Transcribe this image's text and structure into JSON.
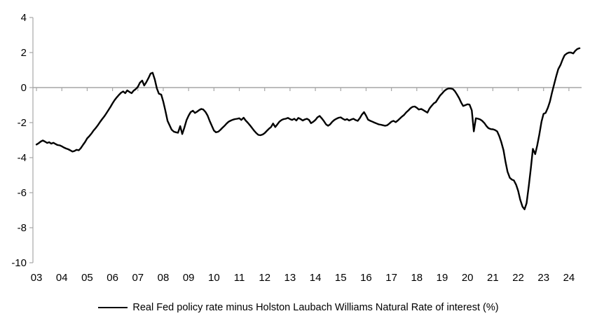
{
  "chart_data": {
    "type": "line",
    "title": "",
    "xlabel": "",
    "ylabel": "",
    "legend": "Real Fed policy rate minus Holston Laubach Williams Natural Rate of interest (%)",
    "legend_position": "bottom-center",
    "grid": "horizontal-zero-line-only",
    "background_color": "#ffffff",
    "axis_color": "#a6a6a6",
    "xlim": [
      2002.86,
      2024.5
    ],
    "ylim": [
      -10,
      4
    ],
    "y_ticks": [
      4,
      2,
      0,
      -2,
      -4,
      -6,
      -8,
      -10
    ],
    "y_tick_labels": [
      "4",
      "2",
      "0",
      "-2",
      "-4",
      "-6",
      "-8",
      "-10"
    ],
    "x_ticks": [
      2003,
      2004,
      2005,
      2006,
      2007,
      2008,
      2009,
      2010,
      2011,
      2012,
      2013,
      2014,
      2015,
      2016,
      2017,
      2018,
      2019,
      2020,
      2021,
      2022,
      2023,
      2024
    ],
    "x_tick_labels": [
      "03",
      "04",
      "05",
      "06",
      "07",
      "08",
      "09",
      "10",
      "11",
      "12",
      "13",
      "14",
      "15",
      "16",
      "17",
      "18",
      "19",
      "20",
      "21",
      "22",
      "23",
      "24"
    ],
    "series": [
      {
        "name": "Real Fed policy rate minus Holston Laubach Williams Natural Rate of interest (%)",
        "color": "#000000",
        "points": [
          [
            2003.0,
            -3.25
          ],
          [
            2003.08,
            -3.18
          ],
          [
            2003.17,
            -3.08
          ],
          [
            2003.25,
            -3.02
          ],
          [
            2003.33,
            -3.08
          ],
          [
            2003.42,
            -3.16
          ],
          [
            2003.5,
            -3.12
          ],
          [
            2003.58,
            -3.2
          ],
          [
            2003.67,
            -3.15
          ],
          [
            2003.75,
            -3.22
          ],
          [
            2003.83,
            -3.28
          ],
          [
            2003.92,
            -3.3
          ],
          [
            2004.0,
            -3.35
          ],
          [
            2004.08,
            -3.42
          ],
          [
            2004.17,
            -3.48
          ],
          [
            2004.25,
            -3.52
          ],
          [
            2004.33,
            -3.58
          ],
          [
            2004.42,
            -3.65
          ],
          [
            2004.5,
            -3.62
          ],
          [
            2004.58,
            -3.55
          ],
          [
            2004.67,
            -3.58
          ],
          [
            2004.75,
            -3.45
          ],
          [
            2004.83,
            -3.28
          ],
          [
            2004.92,
            -3.1
          ],
          [
            2005.0,
            -2.9
          ],
          [
            2005.08,
            -2.78
          ],
          [
            2005.17,
            -2.62
          ],
          [
            2005.25,
            -2.45
          ],
          [
            2005.33,
            -2.32
          ],
          [
            2005.42,
            -2.15
          ],
          [
            2005.5,
            -1.98
          ],
          [
            2005.58,
            -1.82
          ],
          [
            2005.67,
            -1.65
          ],
          [
            2005.75,
            -1.48
          ],
          [
            2005.83,
            -1.3
          ],
          [
            2005.92,
            -1.1
          ],
          [
            2006.0,
            -0.9
          ],
          [
            2006.08,
            -0.72
          ],
          [
            2006.17,
            -0.55
          ],
          [
            2006.25,
            -0.42
          ],
          [
            2006.33,
            -0.3
          ],
          [
            2006.42,
            -0.22
          ],
          [
            2006.5,
            -0.32
          ],
          [
            2006.58,
            -0.16
          ],
          [
            2006.67,
            -0.25
          ],
          [
            2006.75,
            -0.32
          ],
          [
            2006.83,
            -0.18
          ],
          [
            2006.92,
            -0.08
          ],
          [
            2007.0,
            0.05
          ],
          [
            2007.08,
            0.28
          ],
          [
            2007.17,
            0.4
          ],
          [
            2007.25,
            0.12
          ],
          [
            2007.33,
            0.3
          ],
          [
            2007.42,
            0.55
          ],
          [
            2007.5,
            0.8
          ],
          [
            2007.58,
            0.85
          ],
          [
            2007.67,
            0.45
          ],
          [
            2007.75,
            -0.05
          ],
          [
            2007.83,
            -0.35
          ],
          [
            2007.92,
            -0.4
          ],
          [
            2008.0,
            -0.8
          ],
          [
            2008.08,
            -1.3
          ],
          [
            2008.17,
            -1.9
          ],
          [
            2008.25,
            -2.15
          ],
          [
            2008.33,
            -2.4
          ],
          [
            2008.42,
            -2.52
          ],
          [
            2008.5,
            -2.55
          ],
          [
            2008.58,
            -2.58
          ],
          [
            2008.67,
            -2.2
          ],
          [
            2008.75,
            -2.65
          ],
          [
            2008.83,
            -2.3
          ],
          [
            2008.92,
            -1.85
          ],
          [
            2009.0,
            -1.6
          ],
          [
            2009.08,
            -1.4
          ],
          [
            2009.17,
            -1.32
          ],
          [
            2009.25,
            -1.45
          ],
          [
            2009.33,
            -1.38
          ],
          [
            2009.42,
            -1.28
          ],
          [
            2009.5,
            -1.22
          ],
          [
            2009.58,
            -1.25
          ],
          [
            2009.67,
            -1.4
          ],
          [
            2009.75,
            -1.6
          ],
          [
            2009.83,
            -1.9
          ],
          [
            2009.92,
            -2.2
          ],
          [
            2010.0,
            -2.45
          ],
          [
            2010.08,
            -2.55
          ],
          [
            2010.17,
            -2.52
          ],
          [
            2010.25,
            -2.42
          ],
          [
            2010.33,
            -2.3
          ],
          [
            2010.42,
            -2.18
          ],
          [
            2010.5,
            -2.05
          ],
          [
            2010.58,
            -1.95
          ],
          [
            2010.67,
            -1.88
          ],
          [
            2010.75,
            -1.83
          ],
          [
            2010.83,
            -1.8
          ],
          [
            2010.92,
            -1.78
          ],
          [
            2011.0,
            -1.75
          ],
          [
            2011.08,
            -1.85
          ],
          [
            2011.17,
            -1.72
          ],
          [
            2011.25,
            -1.88
          ],
          [
            2011.33,
            -2.0
          ],
          [
            2011.42,
            -2.15
          ],
          [
            2011.5,
            -2.3
          ],
          [
            2011.58,
            -2.45
          ],
          [
            2011.67,
            -2.6
          ],
          [
            2011.75,
            -2.7
          ],
          [
            2011.83,
            -2.72
          ],
          [
            2011.92,
            -2.68
          ],
          [
            2012.0,
            -2.6
          ],
          [
            2012.08,
            -2.48
          ],
          [
            2012.17,
            -2.35
          ],
          [
            2012.25,
            -2.25
          ],
          [
            2012.33,
            -2.05
          ],
          [
            2012.42,
            -2.25
          ],
          [
            2012.5,
            -2.1
          ],
          [
            2012.58,
            -1.95
          ],
          [
            2012.67,
            -1.85
          ],
          [
            2012.75,
            -1.8
          ],
          [
            2012.83,
            -1.78
          ],
          [
            2012.92,
            -1.73
          ],
          [
            2013.0,
            -1.8
          ],
          [
            2013.08,
            -1.85
          ],
          [
            2013.17,
            -1.78
          ],
          [
            2013.25,
            -1.88
          ],
          [
            2013.33,
            -1.73
          ],
          [
            2013.42,
            -1.8
          ],
          [
            2013.5,
            -1.88
          ],
          [
            2013.58,
            -1.82
          ],
          [
            2013.67,
            -1.78
          ],
          [
            2013.75,
            -1.85
          ],
          [
            2013.83,
            -2.03
          ],
          [
            2013.92,
            -1.95
          ],
          [
            2014.0,
            -1.85
          ],
          [
            2014.08,
            -1.7
          ],
          [
            2014.17,
            -1.62
          ],
          [
            2014.25,
            -1.75
          ],
          [
            2014.33,
            -1.9
          ],
          [
            2014.42,
            -2.1
          ],
          [
            2014.5,
            -2.18
          ],
          [
            2014.58,
            -2.1
          ],
          [
            2014.67,
            -1.95
          ],
          [
            2014.75,
            -1.85
          ],
          [
            2014.83,
            -1.78
          ],
          [
            2014.92,
            -1.72
          ],
          [
            2015.0,
            -1.7
          ],
          [
            2015.08,
            -1.78
          ],
          [
            2015.17,
            -1.85
          ],
          [
            2015.25,
            -1.8
          ],
          [
            2015.33,
            -1.88
          ],
          [
            2015.42,
            -1.82
          ],
          [
            2015.5,
            -1.78
          ],
          [
            2015.58,
            -1.85
          ],
          [
            2015.67,
            -1.9
          ],
          [
            2015.75,
            -1.75
          ],
          [
            2015.83,
            -1.55
          ],
          [
            2015.92,
            -1.4
          ],
          [
            2016.0,
            -1.6
          ],
          [
            2016.08,
            -1.83
          ],
          [
            2016.17,
            -1.9
          ],
          [
            2016.25,
            -1.95
          ],
          [
            2016.33,
            -2.0
          ],
          [
            2016.42,
            -2.05
          ],
          [
            2016.5,
            -2.1
          ],
          [
            2016.58,
            -2.12
          ],
          [
            2016.67,
            -2.15
          ],
          [
            2016.75,
            -2.18
          ],
          [
            2016.83,
            -2.15
          ],
          [
            2016.92,
            -2.05
          ],
          [
            2017.0,
            -1.95
          ],
          [
            2017.08,
            -1.9
          ],
          [
            2017.17,
            -1.97
          ],
          [
            2017.25,
            -1.88
          ],
          [
            2017.33,
            -1.77
          ],
          [
            2017.42,
            -1.65
          ],
          [
            2017.5,
            -1.56
          ],
          [
            2017.58,
            -1.42
          ],
          [
            2017.67,
            -1.3
          ],
          [
            2017.75,
            -1.18
          ],
          [
            2017.83,
            -1.1
          ],
          [
            2017.92,
            -1.08
          ],
          [
            2018.0,
            -1.15
          ],
          [
            2018.08,
            -1.25
          ],
          [
            2018.17,
            -1.22
          ],
          [
            2018.25,
            -1.28
          ],
          [
            2018.33,
            -1.35
          ],
          [
            2018.42,
            -1.43
          ],
          [
            2018.5,
            -1.2
          ],
          [
            2018.58,
            -1.05
          ],
          [
            2018.67,
            -0.9
          ],
          [
            2018.75,
            -0.83
          ],
          [
            2018.83,
            -0.65
          ],
          [
            2018.92,
            -0.45
          ],
          [
            2019.0,
            -0.33
          ],
          [
            2019.08,
            -0.2
          ],
          [
            2019.17,
            -0.1
          ],
          [
            2019.25,
            -0.05
          ],
          [
            2019.33,
            -0.05
          ],
          [
            2019.42,
            -0.08
          ],
          [
            2019.5,
            -0.2
          ],
          [
            2019.58,
            -0.38
          ],
          [
            2019.67,
            -0.6
          ],
          [
            2019.75,
            -0.85
          ],
          [
            2019.83,
            -1.05
          ],
          [
            2019.92,
            -1.0
          ],
          [
            2020.0,
            -0.95
          ],
          [
            2020.08,
            -0.97
          ],
          [
            2020.17,
            -1.3
          ],
          [
            2020.25,
            -2.5
          ],
          [
            2020.33,
            -1.75
          ],
          [
            2020.42,
            -1.78
          ],
          [
            2020.5,
            -1.82
          ],
          [
            2020.58,
            -1.9
          ],
          [
            2020.67,
            -2.03
          ],
          [
            2020.75,
            -2.2
          ],
          [
            2020.83,
            -2.32
          ],
          [
            2020.92,
            -2.37
          ],
          [
            2021.0,
            -2.38
          ],
          [
            2021.08,
            -2.42
          ],
          [
            2021.17,
            -2.5
          ],
          [
            2021.25,
            -2.76
          ],
          [
            2021.33,
            -3.1
          ],
          [
            2021.42,
            -3.58
          ],
          [
            2021.5,
            -4.25
          ],
          [
            2021.58,
            -4.8
          ],
          [
            2021.67,
            -5.15
          ],
          [
            2021.75,
            -5.25
          ],
          [
            2021.83,
            -5.3
          ],
          [
            2021.92,
            -5.55
          ],
          [
            2022.0,
            -5.9
          ],
          [
            2022.08,
            -6.4
          ],
          [
            2022.17,
            -6.8
          ],
          [
            2022.25,
            -6.95
          ],
          [
            2022.33,
            -6.6
          ],
          [
            2022.42,
            -5.6
          ],
          [
            2022.5,
            -4.6
          ],
          [
            2022.58,
            -3.5
          ],
          [
            2022.67,
            -3.8
          ],
          [
            2022.75,
            -3.3
          ],
          [
            2022.83,
            -2.7
          ],
          [
            2022.92,
            -1.95
          ],
          [
            2023.0,
            -1.5
          ],
          [
            2023.08,
            -1.45
          ],
          [
            2023.17,
            -1.15
          ],
          [
            2023.25,
            -0.8
          ],
          [
            2023.33,
            -0.3
          ],
          [
            2023.42,
            0.2
          ],
          [
            2023.5,
            0.65
          ],
          [
            2023.58,
            1.05
          ],
          [
            2023.67,
            1.3
          ],
          [
            2023.75,
            1.6
          ],
          [
            2023.83,
            1.85
          ],
          [
            2023.92,
            1.95
          ],
          [
            2024.0,
            2.0
          ],
          [
            2024.08,
            2.0
          ],
          [
            2024.17,
            1.95
          ],
          [
            2024.25,
            2.1
          ],
          [
            2024.33,
            2.2
          ],
          [
            2024.42,
            2.25
          ]
        ]
      }
    ]
  }
}
